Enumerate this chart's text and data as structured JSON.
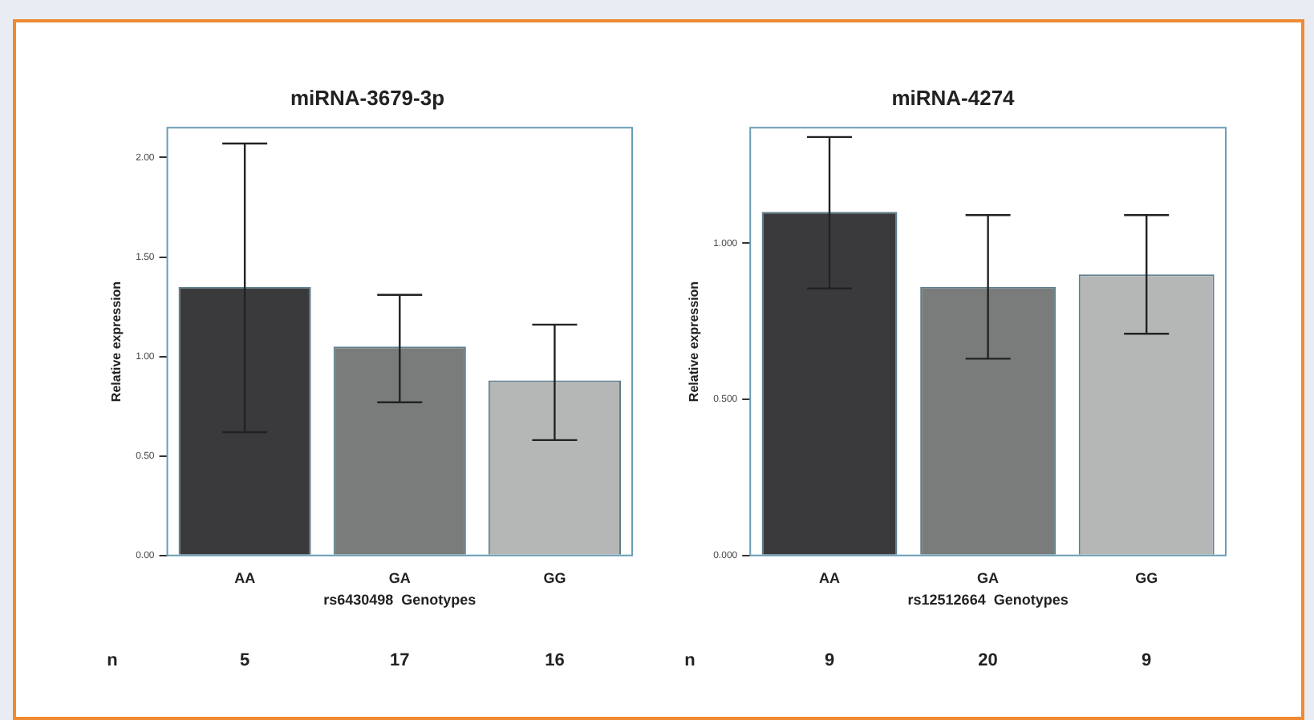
{
  "chart_data": [
    {
      "type": "bar",
      "title": "miRNA-3679-3p",
      "xlabel": "rs6430498  Genotypes",
      "ylabel": "Relative expression",
      "categories": [
        "AA",
        "GA",
        "GG"
      ],
      "values": [
        1.35,
        1.05,
        0.88
      ],
      "colors": [
        "#3a3a3c",
        "#7a7c7c",
        "#b5b6b6"
      ],
      "errors": [
        [
          0.62,
          2.07
        ],
        [
          0.77,
          1.31
        ],
        [
          0.58,
          1.16
        ]
      ],
      "ylim": [
        0,
        2.15
      ],
      "yticks": [
        {
          "value": 0,
          "label": "0.00"
        },
        {
          "value": 0.5,
          "label": "0.50"
        },
        {
          "value": 1,
          "label": "1.00"
        },
        {
          "value": 1.5,
          "label": "1.50"
        },
        {
          "value": 2,
          "label": "2.00"
        }
      ],
      "grid": false,
      "legend": false,
      "annotations": [
        "n",
        "5",
        "17",
        "16"
      ]
    },
    {
      "type": "bar",
      "title": "miRNA-4274",
      "xlabel": "rs12512664  Genotypes",
      "ylabel": "Relative expression",
      "categories": [
        "AA",
        "GA",
        "GG"
      ],
      "values": [
        1.1,
        0.86,
        0.9
      ],
      "colors": [
        "#3a3a3c",
        "#7a7c7c",
        "#b5b6b6"
      ],
      "errors": [
        [
          0.855,
          1.34
        ],
        [
          0.63,
          1.09
        ],
        [
          0.71,
          1.09
        ]
      ],
      "ylim": [
        0,
        1.37
      ],
      "yticks": [
        {
          "value": 0,
          "label": "0.000"
        },
        {
          "value": 0.5,
          "label": "0.500"
        },
        {
          "value": 1,
          "label": "1.000"
        }
      ],
      "grid": false,
      "legend": false,
      "annotations": [
        "n",
        "9",
        "20",
        "9"
      ]
    }
  ]
}
